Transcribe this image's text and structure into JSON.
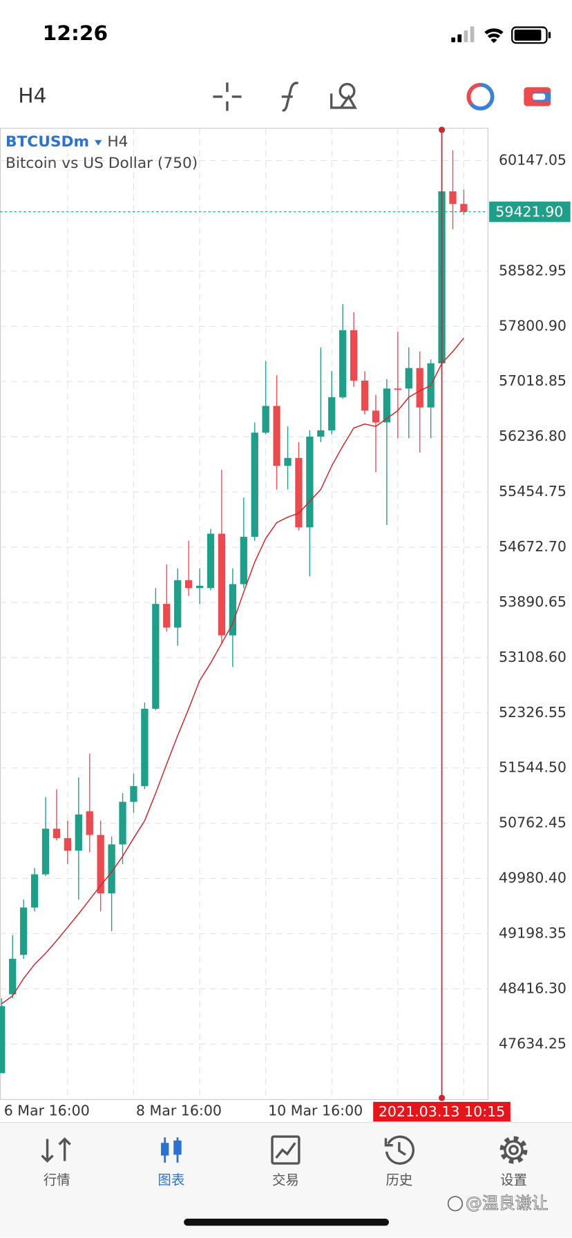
{
  "status_bar": {
    "time": "12:26"
  },
  "toolbar": {
    "timeframe": "H4"
  },
  "chart_data": {
    "type": "candlestick",
    "symbol": "BTCUSDm",
    "timeframe": "H4",
    "description": "Bitcoin vs US Dollar (750)",
    "categories": [
      "6 Mar 16:00",
      null,
      null,
      null,
      null,
      null,
      null,
      null,
      null,
      null,
      null,
      null,
      "8 Mar 16:00",
      null,
      null,
      null,
      null,
      null,
      null,
      null,
      null,
      null,
      null,
      null,
      "10 Mar 16:00",
      null,
      null,
      null,
      null,
      null,
      null,
      null,
      null,
      null,
      null,
      null,
      null,
      null,
      null,
      null,
      "2021.03.13 10:15",
      null,
      null
    ],
    "open": [
      47223,
      48340,
      48899,
      49569,
      50039,
      50686,
      50552,
      50374,
      50932,
      50597,
      49770,
      50463,
      51066,
      51289,
      52384,
      53869,
      53534,
      54205,
      54093,
      54093,
      54863,
      53423,
      54149,
      54819,
      56294,
      56673,
      55824,
      55936,
      54953,
      56238,
      56327,
      56796,
      57745,
      57031,
      56606,
      56439,
      56919,
      56919,
      57209,
      56651,
      57276,
      59711,
      59533
    ],
    "high": [
      48284,
      49178,
      49681,
      50128,
      51133,
      51244,
      50798,
      51412,
      51747,
      50798,
      50575,
      51189,
      51468,
      52473,
      54093,
      54428,
      54372,
      54763,
      54372,
      54930,
      55768,
      54372,
      55377,
      56439,
      57310,
      57109,
      56383,
      56159,
      56327,
      57500,
      57165,
      58114,
      58002,
      57165,
      56830,
      57053,
      57723,
      57500,
      57444,
      57332,
      60605,
      60292,
      59734
    ],
    "low": [
      47223,
      48284,
      48843,
      49513,
      50016,
      50519,
      50184,
      49681,
      50351,
      49513,
      49234,
      50184,
      50910,
      51244,
      52362,
      53478,
      53277,
      53981,
      53869,
      54060,
      53311,
      52976,
      54093,
      54763,
      56271,
      55489,
      55489,
      54908,
      54260,
      56159,
      56271,
      56774,
      56941,
      56550,
      55735,
      54986,
      56215,
      56215,
      56014,
      56215,
      57220,
      59175,
      59376
    ],
    "close": [
      48173,
      48843,
      49569,
      50039,
      50686,
      50552,
      50374,
      50887,
      50597,
      49770,
      50463,
      51066,
      51289,
      52384,
      53869,
      53534,
      54205,
      54093,
      54127,
      54863,
      53423,
      54149,
      54819,
      56294,
      56673,
      55824,
      55936,
      54953,
      56238,
      56327,
      56796,
      57745,
      57031,
      56606,
      56439,
      56919,
      56900,
      57209,
      56651,
      57276,
      59711,
      59533,
      59421.9
    ],
    "up_color": "#1f9e89",
    "down_color": "#ec4a4e",
    "moving_average": {
      "color": "#d0262b",
      "values": [
        48206,
        48318,
        48564,
        48765,
        48921,
        49100,
        49290,
        49480,
        49681,
        49882,
        50072,
        50295,
        50552,
        50798,
        51189,
        51602,
        52004,
        52384,
        52785,
        53032,
        53311,
        53590,
        54037,
        54461,
        54797,
        55020,
        55098,
        55154,
        55322,
        55489,
        55824,
        56104,
        56360,
        56416,
        56383,
        56495,
        56606,
        56796,
        56886,
        56964,
        57276,
        57444,
        57634
      ]
    },
    "ylim": [
      46850.5,
      60605.2
    ],
    "yticks": [
      60147.05,
      58582.95,
      {
        "value": 57800.9,
        "label": "57800.90"
      },
      57018.85,
      {
        "value": 56236.8,
        "label": "56236.80"
      },
      55454.75,
      {
        "value": 54672.7,
        "label": "54672.70"
      },
      53890.65,
      {
        "value": 53108.6,
        "label": "53108.60"
      },
      52326.55,
      {
        "value": 51544.5,
        "label": "51544.50"
      },
      50762.45,
      {
        "value": 49980.4,
        "label": "49980.40"
      },
      49198.35,
      {
        "value": 48416.3,
        "label": "48416.30"
      },
      47634.25
    ],
    "grid": true,
    "current_price": {
      "value": 59421.9,
      "label": "59421.90",
      "color": "#1f9e89"
    },
    "crosshair_index": 40,
    "crosshair_color": "#d0262b"
  },
  "tab_bar": {
    "tabs": [
      "行情",
      "图表",
      "交易",
      "历史",
      "设置"
    ],
    "active": 1
  },
  "watermark": "@温良谦让"
}
